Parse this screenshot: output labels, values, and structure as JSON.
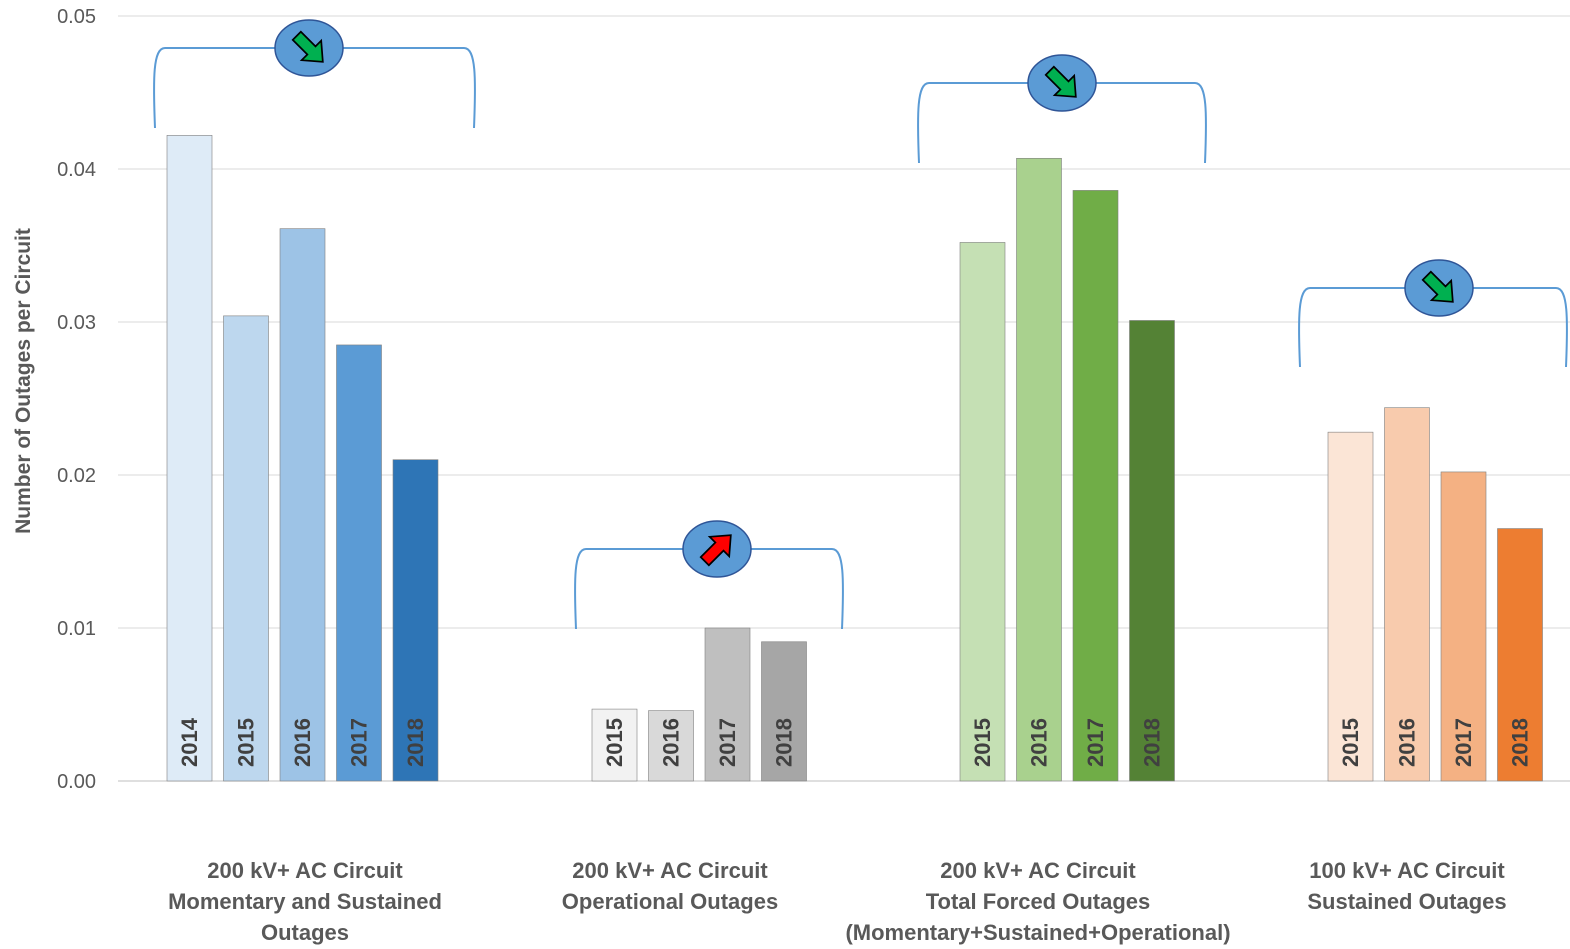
{
  "chart_data": {
    "type": "bar",
    "title": "",
    "xlabel": "",
    "ylabel": "Number of Outages per Circuit",
    "ylim": [
      0,
      0.05
    ],
    "yticks": [
      "0.00",
      "0.01",
      "0.02",
      "0.03",
      "0.04",
      "0.05"
    ],
    "grid": true,
    "legend": "none",
    "groups": [
      {
        "label_lines": [
          "200 kV+ AC Circuit",
          "Momentary and Sustained",
          "Outages"
        ],
        "categories": [
          "2014",
          "2015",
          "2016",
          "2017",
          "2018"
        ],
        "values": [
          0.0422,
          0.0304,
          0.0361,
          0.0285,
          0.021
        ],
        "colors": [
          "#DEEBF7",
          "#BDD7EE",
          "#9DC3E6",
          "#5B9BD5",
          "#2E75B6"
        ],
        "trend": "down",
        "trend_color": "#00B050"
      },
      {
        "label_lines": [
          "200 kV+ AC Circuit",
          "Operational Outages"
        ],
        "categories": [
          "2015",
          "2016",
          "2017",
          "2018"
        ],
        "values": [
          0.0047,
          0.0046,
          0.01,
          0.0091
        ],
        "colors": [
          "#F2F2F2",
          "#D9D9D9",
          "#BFBFBF",
          "#A6A6A6"
        ],
        "trend": "up",
        "trend_color": "#FF0000"
      },
      {
        "label_lines": [
          "200 kV+ AC Circuit",
          "Total Forced Outages",
          "(Momentary+Sustained+Operational)"
        ],
        "categories": [
          "2015",
          "2016",
          "2017",
          "2018"
        ],
        "values": [
          0.0352,
          0.0407,
          0.0386,
          0.0301
        ],
        "colors": [
          "#C5E0B4",
          "#A9D18E",
          "#70AD47",
          "#548235"
        ],
        "trend": "down",
        "trend_color": "#00B050"
      },
      {
        "label_lines": [
          "100 kV+ AC Circuit",
          "Sustained Outages"
        ],
        "categories": [
          "2015",
          "2016",
          "2017",
          "2018"
        ],
        "values": [
          0.0228,
          0.0244,
          0.0202,
          0.0165
        ],
        "colors": [
          "#FBE5D6",
          "#F8CBAD",
          "#F4B183",
          "#ED7D31"
        ],
        "trend": "down",
        "trend_color": "#00B050"
      }
    ]
  }
}
